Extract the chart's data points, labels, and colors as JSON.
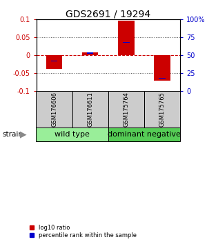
{
  "title": "GDS2691 / 19294",
  "samples": [
    "GSM176606",
    "GSM176611",
    "GSM175764",
    "GSM175765"
  ],
  "log10_ratio": [
    -0.038,
    0.008,
    0.097,
    -0.072
  ],
  "percentile_rank_raw": [
    42,
    53,
    68,
    18
  ],
  "ylim": [
    -0.1,
    0.1
  ],
  "yticks_left": [
    -0.1,
    -0.05,
    0,
    0.05,
    0.1
  ],
  "ytick_labels_left": [
    "-0.1",
    "-0.05",
    "0",
    "0.05",
    "0.1"
  ],
  "yticks_right": [
    0,
    25,
    50,
    75,
    100
  ],
  "ytick_labels_right": [
    "0",
    "25",
    "50",
    "75",
    "100%"
  ],
  "groups": [
    {
      "name": "wild type",
      "samples": [
        0,
        1
      ],
      "color": "#99EE99"
    },
    {
      "name": "dominant negative",
      "samples": [
        2,
        3
      ],
      "color": "#55CC55"
    }
  ],
  "bar_width": 0.45,
  "bar_color_red": "#CC0000",
  "bar_color_blue": "#0000CC",
  "blue_bar_width": 0.18,
  "strain_label": "strain",
  "legend_items": [
    {
      "color": "#CC0000",
      "label": "log10 ratio"
    },
    {
      "color": "#0000CC",
      "label": "percentile rank within the sample"
    }
  ],
  "hline_color": "#CC0000",
  "dotted_line_color": "#555555",
  "sample_box_color": "#CCCCCC",
  "title_fontsize": 10,
  "tick_fontsize": 7,
  "label_fontsize": 7,
  "sample_fontsize": 6,
  "group_fontsize": 8
}
